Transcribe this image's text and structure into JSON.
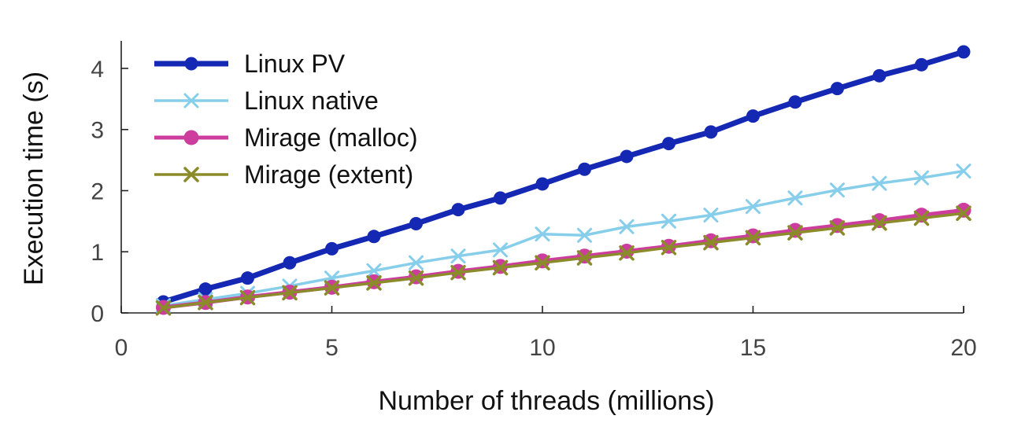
{
  "chart_data": {
    "type": "line",
    "title": "",
    "xlabel": "Number of threads (millions)",
    "ylabel": "Execution time (s)",
    "xlim": [
      0,
      20
    ],
    "ylim": [
      0,
      4.45
    ],
    "xticks": [
      0,
      5,
      10,
      15,
      20
    ],
    "yticks": [
      0,
      1,
      2,
      3,
      4
    ],
    "grid": false,
    "legend_position": "top-left",
    "x": [
      1,
      2,
      3,
      4,
      5,
      6,
      7,
      8,
      9,
      10,
      11,
      12,
      13,
      14,
      15,
      16,
      17,
      18,
      19,
      20
    ],
    "series": [
      {
        "name": "Linux PV",
        "color": "#1428b4",
        "marker": "circle",
        "values": [
          0.18,
          0.39,
          0.57,
          0.82,
          1.05,
          1.25,
          1.46,
          1.69,
          1.88,
          2.11,
          2.35,
          2.56,
          2.77,
          2.96,
          3.22,
          3.45,
          3.67,
          3.88,
          4.06,
          4.27
        ]
      },
      {
        "name": "Linux native",
        "color": "#87ceeb",
        "marker": "x",
        "values": [
          0.12,
          0.22,
          0.32,
          0.44,
          0.57,
          0.69,
          0.82,
          0.93,
          1.03,
          1.29,
          1.27,
          1.41,
          1.5,
          1.6,
          1.74,
          1.88,
          2.01,
          2.12,
          2.21,
          2.32
        ]
      },
      {
        "name": "Mirage (malloc)",
        "color": "#cc3d9e",
        "marker": "circle",
        "values": [
          0.09,
          0.17,
          0.26,
          0.34,
          0.42,
          0.51,
          0.59,
          0.68,
          0.76,
          0.85,
          0.93,
          1.01,
          1.09,
          1.18,
          1.26,
          1.35,
          1.43,
          1.51,
          1.6,
          1.68
        ]
      },
      {
        "name": "Mirage (extent)",
        "color": "#8b8b2a",
        "marker": "x",
        "values": [
          0.08,
          0.17,
          0.25,
          0.33,
          0.41,
          0.49,
          0.57,
          0.66,
          0.74,
          0.82,
          0.9,
          0.98,
          1.07,
          1.15,
          1.23,
          1.31,
          1.39,
          1.47,
          1.55,
          1.63
        ]
      }
    ]
  }
}
